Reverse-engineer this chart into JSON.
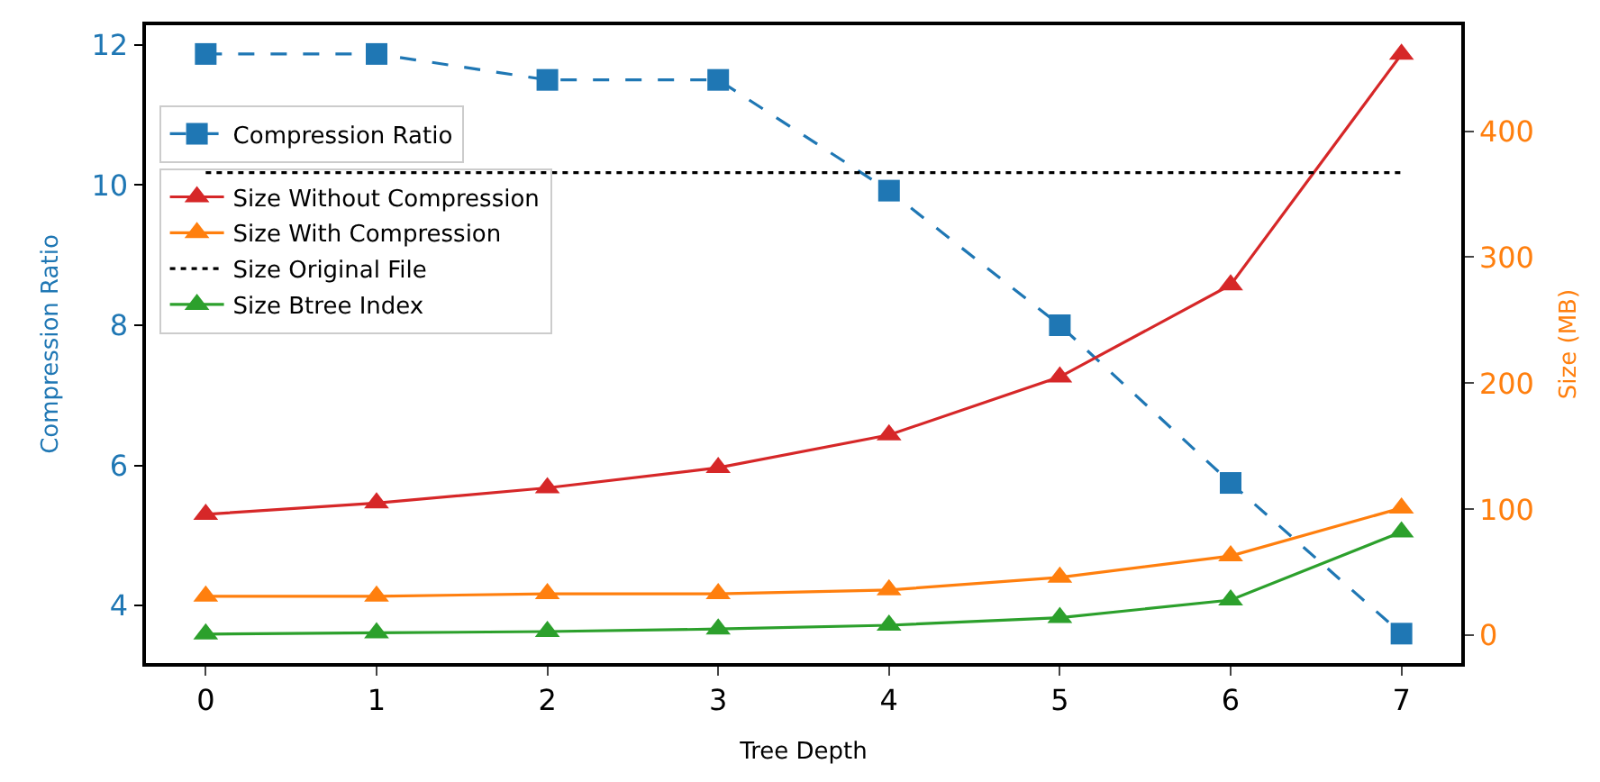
{
  "chart_data": {
    "type": "line",
    "xlabel": "Tree Depth",
    "ylabel": "Compression Ratio",
    "y2label": "Size (MB)",
    "x": [
      0,
      1,
      2,
      3,
      4,
      5,
      6,
      7
    ],
    "xlim": [
      -0.35,
      7.35
    ],
    "xticks": [
      0,
      1,
      2,
      3,
      4,
      5,
      6,
      7
    ],
    "ylim": [
      3.18,
      12.28
    ],
    "yticks": [
      4,
      6,
      8,
      10,
      12
    ],
    "y2lim": [
      -22,
      484
    ],
    "y2ticks": [
      0,
      100,
      200,
      300,
      400
    ],
    "legend": "top left",
    "series": [
      {
        "name": "Compression Ratio",
        "color": "#1f77b4",
        "values": [
          11.87,
          11.87,
          11.5,
          11.5,
          9.92,
          8.0,
          5.75,
          3.6
        ],
        "marker": "square",
        "line_style": "dashed"
      },
      {
        "name": "Size Without Compression",
        "color": "#d62728",
        "values": [
          96,
          105,
          117,
          133,
          159,
          205,
          278,
          461
        ],
        "axis": "y2",
        "marker": "triangle",
        "line_style": "solid"
      },
      {
        "name": "Size With Compression",
        "color": "#ff7f0e",
        "values": [
          31,
          31,
          33,
          33,
          36,
          46,
          63,
          101
        ],
        "axis": "y2",
        "marker": "triangle",
        "line_style": "solid"
      },
      {
        "name": "Size Original File",
        "color": "#000000",
        "values": [
          367,
          367,
          367,
          367,
          367,
          367,
          367,
          367
        ],
        "axis": "y2",
        "marker": "none",
        "line_style": "dotted"
      },
      {
        "name": "Size Btree Index",
        "color": "#2ca02c",
        "values": [
          1,
          2,
          3,
          5,
          8,
          14,
          28,
          82
        ],
        "axis": "y2",
        "marker": "triangle",
        "line_style": "solid"
      }
    ]
  }
}
